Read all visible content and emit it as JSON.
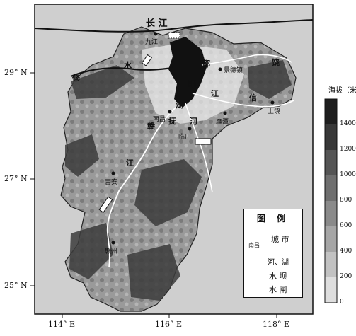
{
  "latitude_labels": [
    {
      "text": "29° N",
      "value": 29
    },
    {
      "text": "27° N",
      "value": 27
    },
    {
      "text": "25° N",
      "value": 25
    }
  ],
  "longitude_labels": [
    {
      "text": "114° E",
      "value": 114
    },
    {
      "text": "116° E",
      "value": 116
    },
    {
      "text": "118° E",
      "value": 118
    }
  ],
  "rivers": {
    "changjiang": "长 江"
  },
  "region_chars": {
    "xiu": "修",
    "shui": "水",
    "po": "鄱",
    "yang": "阳",
    "hu": "湖",
    "rao": "饶",
    "xin": "信",
    "jiang_e": "江",
    "fu": "抚",
    "he": "河",
    "gan": "赣",
    "jiang_w": "江"
  },
  "places": {
    "jiujiang": "九江",
    "nanchang": "南昌",
    "jingdezhen": "景德镇",
    "yingtan": "鹰潭",
    "shangrao": "上饶",
    "linchuan": "临川",
    "jian": "吉安",
    "ganzhou": "赣州"
  },
  "legend": {
    "title": "图 例",
    "city_sample": "南昌",
    "city": "城 市",
    "river_lake": "河、湖",
    "dam": "水 坝",
    "sluice": "水 闸"
  },
  "elevation_scale": {
    "title": "海拔（米）",
    "labels": [
      "1400",
      "1200",
      "1000",
      "800",
      "600",
      "400",
      "200",
      "0"
    ],
    "colors": [
      "#1e1e1e",
      "#383838",
      "#555555",
      "#6f6f6f",
      "#8a8a8a",
      "#a6a6a6",
      "#c2c2c2",
      "#dedede"
    ]
  }
}
